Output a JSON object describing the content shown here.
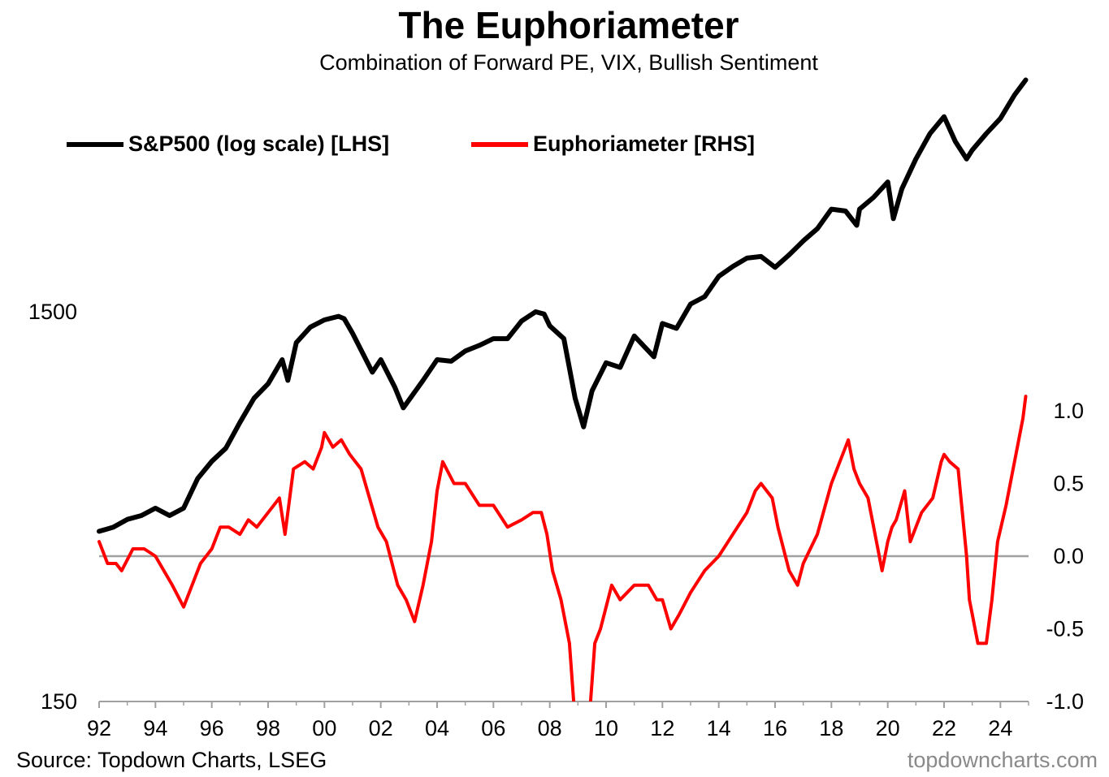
{
  "title": "The Euphoriameter",
  "subtitle": "Combination of Forward PE, VIX, Bullish Sentiment",
  "legend": {
    "sp500": "S&P500 (log scale) [LHS]",
    "euphoria": "Euphoriameter [RHS]"
  },
  "source": "Source: Topdown Charts, LSEG",
  "watermark": "topdowncharts.com",
  "colors": {
    "sp500": "#000000",
    "euphoria": "#ff0000",
    "zero_line": "#a0a0a0",
    "axis": "#a0a0a0"
  },
  "chart_data": {
    "type": "line",
    "x_range": [
      1992.0,
      2025.0
    ],
    "x_ticks": [
      "92",
      "94",
      "96",
      "98",
      "00",
      "02",
      "04",
      "06",
      "08",
      "10",
      "12",
      "14",
      "16",
      "18",
      "20",
      "22",
      "24"
    ],
    "left_axis": {
      "scale": "log",
      "ylim": [
        150,
        9000
      ],
      "ticks": [
        150,
        1500
      ],
      "tick_labels": [
        "150",
        "1500"
      ]
    },
    "right_axis": {
      "scale": "linear",
      "ylim": [
        -1.0,
        1.5
      ],
      "ticks": [
        -1.0,
        -0.5,
        0.0,
        0.5,
        1.0
      ],
      "tick_labels": [
        "-1.0",
        "-0.5",
        "0.0",
        "0.5",
        "1.0"
      ]
    },
    "series": [
      {
        "name": "S&P500 (log scale) [LHS]",
        "axis": "left",
        "x": [
          1992.0,
          1992.5,
          1993.0,
          1993.5,
          1994.0,
          1994.5,
          1995.0,
          1995.5,
          1996.0,
          1996.5,
          1997.0,
          1997.5,
          1998.0,
          1998.5,
          1998.7,
          1999.0,
          1999.5,
          2000.0,
          2000.5,
          2000.7,
          2001.0,
          2001.7,
          2002.0,
          2002.5,
          2002.8,
          2003.0,
          2003.5,
          2004.0,
          2004.5,
          2005.0,
          2005.5,
          2006.0,
          2006.5,
          2007.0,
          2007.5,
          2007.8,
          2008.0,
          2008.5,
          2008.9,
          2009.2,
          2009.5,
          2010.0,
          2010.5,
          2011.0,
          2011.7,
          2012.0,
          2012.5,
          2013.0,
          2013.5,
          2014.0,
          2014.5,
          2015.0,
          2015.5,
          2016.0,
          2016.5,
          2017.0,
          2017.5,
          2018.0,
          2018.5,
          2018.9,
          2019.0,
          2019.5,
          2020.0,
          2020.2,
          2020.5,
          2021.0,
          2021.5,
          2022.0,
          2022.4,
          2022.8,
          2023.0,
          2023.5,
          2024.0,
          2024.5,
          2024.9
        ],
        "y": [
          410,
          420,
          440,
          450,
          470,
          450,
          470,
          560,
          620,
          670,
          780,
          900,
          980,
          1130,
          1000,
          1250,
          1370,
          1430,
          1460,
          1440,
          1320,
          1050,
          1130,
          960,
          850,
          890,
          1000,
          1130,
          1120,
          1190,
          1230,
          1280,
          1280,
          1420,
          1500,
          1480,
          1380,
          1280,
          900,
          760,
          940,
          1110,
          1080,
          1300,
          1150,
          1400,
          1360,
          1570,
          1640,
          1850,
          1960,
          2060,
          2080,
          1950,
          2100,
          2280,
          2450,
          2750,
          2720,
          2500,
          2750,
          2950,
          3230,
          2600,
          3100,
          3700,
          4300,
          4750,
          4100,
          3700,
          3900,
          4300,
          4700,
          5400,
          5900
        ]
      },
      {
        "name": "Euphoriameter [RHS]",
        "axis": "right",
        "x": [
          1992.0,
          1992.3,
          1992.6,
          1992.8,
          1993.2,
          1993.6,
          1994.0,
          1994.3,
          1994.6,
          1995.0,
          1995.3,
          1995.6,
          1996.0,
          1996.3,
          1996.6,
          1997.0,
          1997.3,
          1997.6,
          1998.0,
          1998.4,
          1998.6,
          1998.9,
          1999.3,
          1999.6,
          1999.9,
          2000.0,
          2000.3,
          2000.6,
          2000.9,
          2001.3,
          2001.6,
          2001.9,
          2002.2,
          2002.6,
          2002.9,
          2003.2,
          2003.5,
          2003.8,
          2004.0,
          2004.2,
          2004.6,
          2005.0,
          2005.5,
          2006.0,
          2006.5,
          2007.0,
          2007.4,
          2007.7,
          2007.9,
          2008.1,
          2008.4,
          2008.7,
          2008.85,
          2009.0,
          2009.2,
          2009.45,
          2009.6,
          2009.8,
          2010.2,
          2010.5,
          2011.0,
          2011.5,
          2011.8,
          2012.0,
          2012.3,
          2012.6,
          2013.0,
          2013.5,
          2014.0,
          2014.5,
          2015.0,
          2015.3,
          2015.5,
          2015.9,
          2016.1,
          2016.5,
          2016.8,
          2017.0,
          2017.5,
          2018.0,
          2018.4,
          2018.6,
          2018.8,
          2019.0,
          2019.3,
          2019.6,
          2019.8,
          2020.0,
          2020.15,
          2020.3,
          2020.6,
          2020.8,
          2021.2,
          2021.6,
          2021.9,
          2022.0,
          2022.2,
          2022.5,
          2022.8,
          2022.9,
          2023.0,
          2023.2,
          2023.5,
          2023.7,
          2023.9,
          2024.2,
          2024.5,
          2024.8,
          2024.9
        ],
        "y": [
          0.1,
          -0.05,
          -0.05,
          -0.1,
          0.05,
          0.05,
          0.0,
          -0.1,
          -0.2,
          -0.35,
          -0.2,
          -0.05,
          0.05,
          0.2,
          0.2,
          0.15,
          0.25,
          0.2,
          0.3,
          0.4,
          0.15,
          0.6,
          0.65,
          0.6,
          0.75,
          0.85,
          0.75,
          0.8,
          0.7,
          0.6,
          0.4,
          0.2,
          0.1,
          -0.2,
          -0.3,
          -0.45,
          -0.2,
          0.1,
          0.45,
          0.65,
          0.5,
          0.5,
          0.35,
          0.35,
          0.2,
          0.25,
          0.3,
          0.3,
          0.15,
          -0.1,
          -0.3,
          -0.6,
          -1.0,
          -1.2,
          -1.2,
          -1.0,
          -0.6,
          -0.5,
          -0.2,
          -0.3,
          -0.2,
          -0.2,
          -0.3,
          -0.3,
          -0.5,
          -0.4,
          -0.25,
          -0.1,
          0.0,
          0.15,
          0.3,
          0.45,
          0.5,
          0.4,
          0.2,
          -0.1,
          -0.2,
          -0.05,
          0.15,
          0.5,
          0.7,
          0.8,
          0.6,
          0.5,
          0.4,
          0.1,
          -0.1,
          0.1,
          0.2,
          0.25,
          0.45,
          0.1,
          0.3,
          0.4,
          0.65,
          0.7,
          0.65,
          0.6,
          0.0,
          -0.3,
          -0.4,
          -0.6,
          -0.6,
          -0.3,
          0.1,
          0.35,
          0.65,
          0.95,
          1.1
        ]
      }
    ]
  }
}
